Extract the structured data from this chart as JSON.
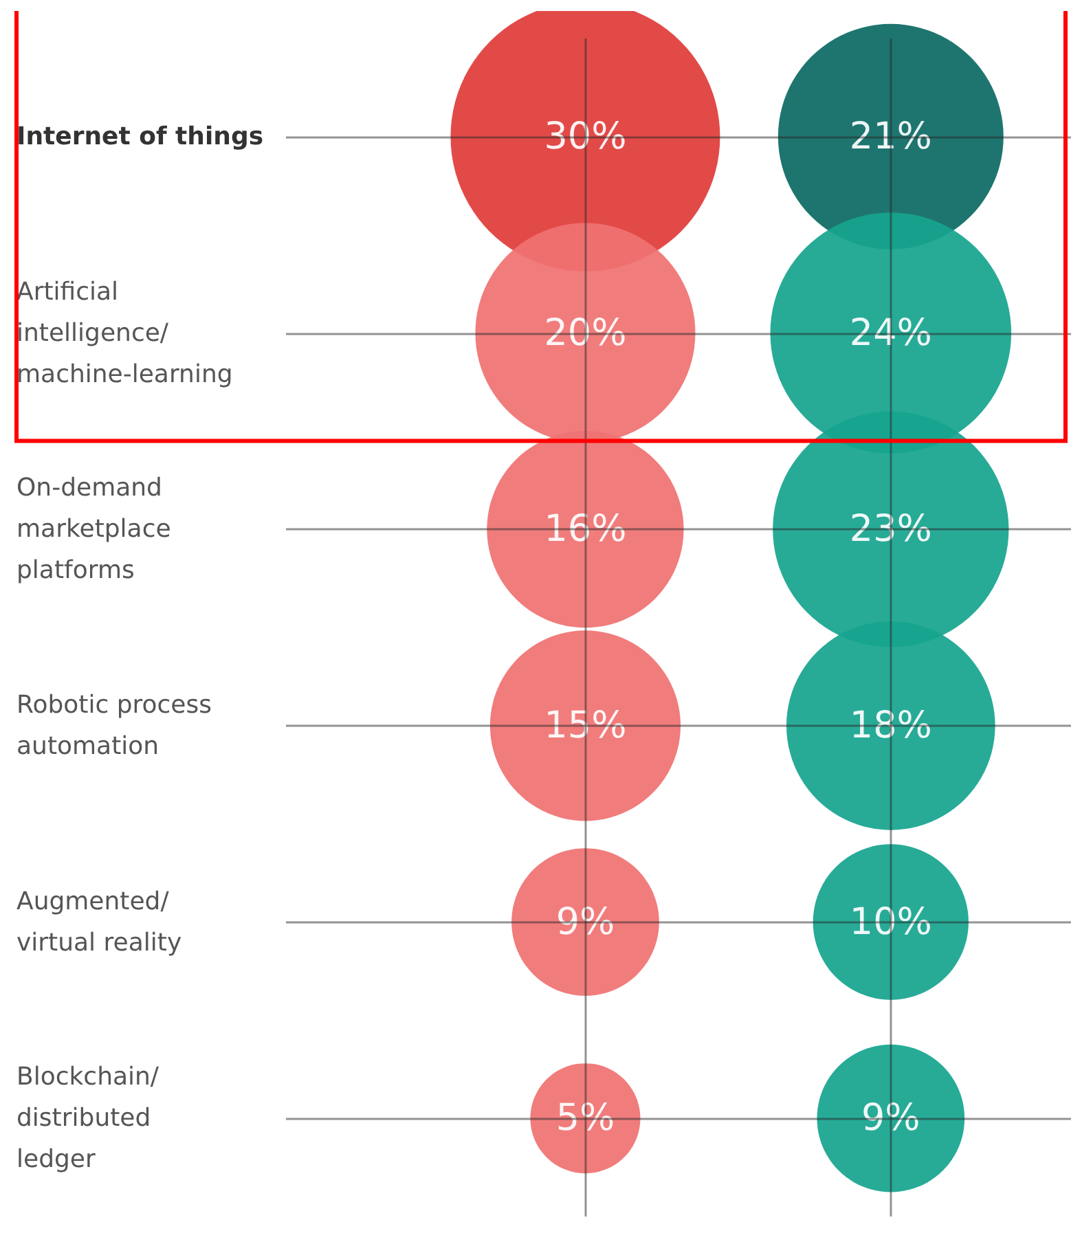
{
  "chart_data": {
    "type": "other",
    "categories": [
      "Internet of things",
      "Artificial intelligence/ machine-learning",
      "On-demand marketplace platforms",
      "Robotic process automation",
      "Augmented/ virtual reality",
      "Blockchain/ distributed ledger"
    ],
    "series": [
      {
        "colors": [
          "#e03c3a",
          "#f07272",
          "#f07272",
          "#f07272",
          "#f07272",
          "#f07272"
        ],
        "values": [
          30,
          20,
          16,
          15,
          9,
          5
        ],
        "value_labels": [
          "30%",
          "20%",
          "16%",
          "15%",
          "9%",
          "5%"
        ]
      },
      {
        "colors": [
          "#0d6b64",
          "#17a58f",
          "#17a58f",
          "#17a58f",
          "#17a58f",
          "#17a58f"
        ],
        "values": [
          21,
          24,
          23,
          18,
          10,
          9
        ],
        "value_labels": [
          "21%",
          "24%",
          "23%",
          "18%",
          "10%",
          "9%"
        ]
      }
    ]
  }
}
